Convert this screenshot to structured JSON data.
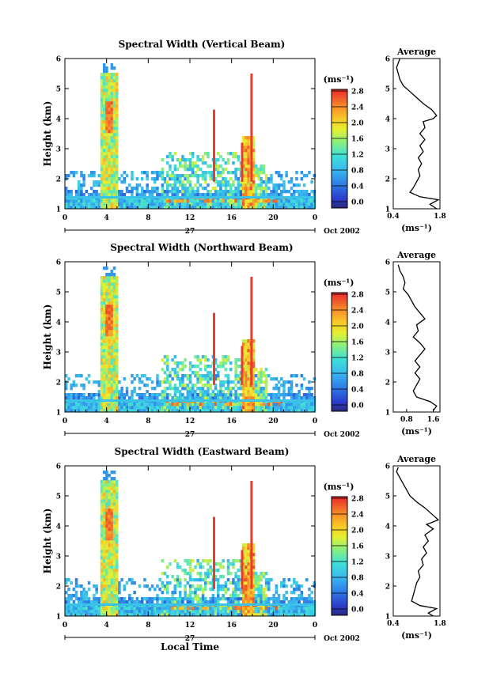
{
  "chart_data": [
    {
      "type": "heatmap",
      "title": "Spectral Width (Vertical Beam)",
      "ylabel": "Height (km)",
      "ylim": [
        1,
        6
      ],
      "yticks": [
        "1",
        "2",
        "3",
        "4",
        "5",
        "6"
      ],
      "xlim": [
        0,
        24
      ],
      "xticks": [
        "0",
        "4",
        "8",
        "12",
        "16",
        "20",
        "0"
      ],
      "date_day": "27",
      "date_label": "Oct 2002",
      "colorbar": {
        "unit": "(ms⁻¹)",
        "ticks": [
          "0.0",
          "0.4",
          "0.8",
          "1.2",
          "1.6",
          "2.0",
          "2.4",
          "2.8"
        ],
        "range": [
          0.0,
          3.0
        ]
      },
      "profile": {
        "title": "Average",
        "xlabel": "(ms⁻¹)",
        "xticks": [
          "0.4",
          "1.8"
        ],
        "xlim": [
          0.4,
          1.8
        ],
        "ylim": [
          1,
          6
        ],
        "yticks": [
          "1",
          "2",
          "3",
          "4",
          "5",
          "6"
        ],
        "points": [
          [
            0.6,
            6.0
          ],
          [
            0.55,
            5.85
          ],
          [
            0.5,
            5.7
          ],
          [
            0.55,
            5.5
          ],
          [
            0.6,
            5.3
          ],
          [
            0.7,
            5.1
          ],
          [
            0.9,
            4.9
          ],
          [
            1.1,
            4.7
          ],
          [
            1.3,
            4.5
          ],
          [
            1.55,
            4.3
          ],
          [
            1.7,
            4.1
          ],
          [
            1.6,
            4.0
          ],
          [
            1.3,
            3.9
          ],
          [
            1.35,
            3.7
          ],
          [
            1.2,
            3.5
          ],
          [
            1.35,
            3.3
          ],
          [
            1.2,
            3.1
          ],
          [
            1.3,
            2.9
          ],
          [
            1.15,
            2.7
          ],
          [
            1.25,
            2.5
          ],
          [
            1.15,
            2.3
          ],
          [
            1.2,
            2.1
          ],
          [
            1.1,
            1.9
          ],
          [
            1.0,
            1.7
          ],
          [
            0.9,
            1.55
          ],
          [
            1.2,
            1.4
          ],
          [
            1.75,
            1.3
          ],
          [
            1.5,
            1.15
          ],
          [
            1.7,
            1.0
          ]
        ]
      }
    },
    {
      "type": "heatmap",
      "title": "Spectral Width (Northward Beam)",
      "ylabel": "Height (km)",
      "ylim": [
        1,
        6
      ],
      "yticks": [
        "1",
        "2",
        "3",
        "4",
        "5",
        "6"
      ],
      "xlim": [
        0,
        24
      ],
      "xticks": [
        "0",
        "4",
        "8",
        "12",
        "16",
        "20",
        "0"
      ],
      "date_day": "27",
      "date_label": "Oct 2002",
      "colorbar": {
        "unit": "(ms⁻¹)",
        "ticks": [
          "0.0",
          "0.4",
          "0.8",
          "1.2",
          "1.6",
          "2.0",
          "2.4",
          "2.8"
        ],
        "range": [
          0.0,
          3.0
        ]
      },
      "profile": {
        "title": "Average",
        "xlabel": "(ms⁻¹)",
        "xticks": [
          "0.8",
          "1.6"
        ],
        "xlim": [
          0.4,
          1.8
        ],
        "ylim": [
          1,
          6
        ],
        "yticks": [
          "1",
          "2",
          "3",
          "4",
          "5",
          "6"
        ],
        "points": [
          [
            0.55,
            5.9
          ],
          [
            0.6,
            5.7
          ],
          [
            0.7,
            5.5
          ],
          [
            0.75,
            5.3
          ],
          [
            0.7,
            5.1
          ],
          [
            0.85,
            4.9
          ],
          [
            0.95,
            4.7
          ],
          [
            1.05,
            4.5
          ],
          [
            1.2,
            4.3
          ],
          [
            1.35,
            4.1
          ],
          [
            1.1,
            3.9
          ],
          [
            1.15,
            3.7
          ],
          [
            1.0,
            3.5
          ],
          [
            1.2,
            3.3
          ],
          [
            1.35,
            3.1
          ],
          [
            1.2,
            2.9
          ],
          [
            1.05,
            2.7
          ],
          [
            1.2,
            2.5
          ],
          [
            1.05,
            2.3
          ],
          [
            1.2,
            2.1
          ],
          [
            1.1,
            1.9
          ],
          [
            1.0,
            1.7
          ],
          [
            1.1,
            1.5
          ],
          [
            1.5,
            1.35
          ],
          [
            1.7,
            1.2
          ],
          [
            1.6,
            1.05
          ]
        ]
      }
    },
    {
      "type": "heatmap",
      "title": "Spectral Width (Eastward Beam)",
      "ylabel": "Height (km)",
      "xlabel": "Local Time",
      "ylim": [
        1,
        6
      ],
      "yticks": [
        "1",
        "2",
        "3",
        "4",
        "5",
        "6"
      ],
      "xlim": [
        0,
        24
      ],
      "xticks": [
        "0",
        "4",
        "8",
        "12",
        "16",
        "20",
        "0"
      ],
      "date_day": "27",
      "date_label": "Oct 2002",
      "colorbar": {
        "unit": "(ms⁻¹)",
        "ticks": [
          "0.0",
          "0.4",
          "0.8",
          "1.2",
          "1.6",
          "2.0",
          "2.4",
          "2.8"
        ],
        "range": [
          0.0,
          3.0
        ]
      },
      "profile": {
        "title": "Average",
        "xlabel": "(ms⁻¹)",
        "xticks": [
          "0.4",
          "1.8"
        ],
        "xlim": [
          0.4,
          1.8
        ],
        "ylim": [
          1,
          6
        ],
        "yticks": [
          "1",
          "2",
          "3",
          "4",
          "5",
          "6"
        ],
        "points": [
          [
            0.55,
            5.95
          ],
          [
            0.5,
            5.8
          ],
          [
            0.6,
            5.6
          ],
          [
            0.7,
            5.4
          ],
          [
            0.8,
            5.2
          ],
          [
            0.9,
            5.0
          ],
          [
            1.1,
            4.8
          ],
          [
            1.35,
            4.6
          ],
          [
            1.55,
            4.4
          ],
          [
            1.75,
            4.2
          ],
          [
            1.4,
            4.05
          ],
          [
            1.6,
            3.9
          ],
          [
            1.35,
            3.7
          ],
          [
            1.45,
            3.5
          ],
          [
            1.3,
            3.3
          ],
          [
            1.4,
            3.1
          ],
          [
            1.25,
            2.9
          ],
          [
            1.3,
            2.7
          ],
          [
            1.15,
            2.5
          ],
          [
            1.2,
            2.3
          ],
          [
            1.1,
            2.1
          ],
          [
            1.05,
            1.9
          ],
          [
            1.0,
            1.7
          ],
          [
            0.95,
            1.5
          ],
          [
            1.2,
            1.35
          ],
          [
            1.7,
            1.25
          ],
          [
            1.45,
            1.1
          ],
          [
            1.6,
            1.0
          ]
        ]
      }
    }
  ]
}
